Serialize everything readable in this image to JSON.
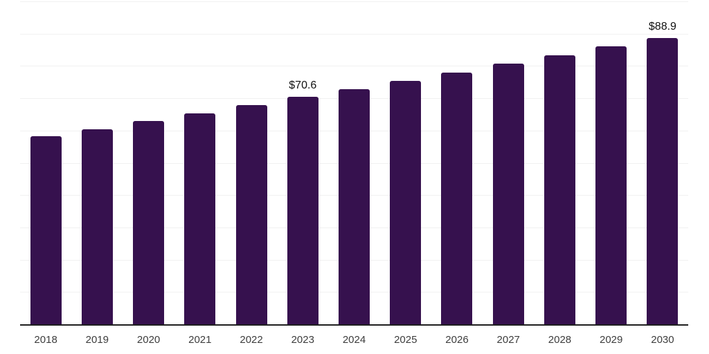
{
  "chart_data": {
    "type": "bar",
    "title": "",
    "xlabel": "",
    "ylabel": "",
    "categories": [
      "2018",
      "2019",
      "2020",
      "2021",
      "2022",
      "2023",
      "2024",
      "2025",
      "2026",
      "2027",
      "2028",
      "2029",
      "2030"
    ],
    "values": [
      58.4,
      60.7,
      63.2,
      65.6,
      68.0,
      70.6,
      73.1,
      75.6,
      78.2,
      80.9,
      83.6,
      86.2,
      88.9
    ],
    "data_labels": [
      null,
      null,
      null,
      null,
      null,
      "$70.6",
      null,
      null,
      null,
      null,
      null,
      null,
      "$88.9"
    ],
    "ylim": [
      0,
      100
    ],
    "gridline_step": 10,
    "grid": "horizontal",
    "legend_position": "none",
    "colors": {
      "bar_fill": "#36114E",
      "axis_line": "#1f1f1f",
      "gridline": "#f1f1f1",
      "data_label_text": "#111111",
      "tick_label_text": "#3d3d3d",
      "background": "#ffffff"
    }
  }
}
